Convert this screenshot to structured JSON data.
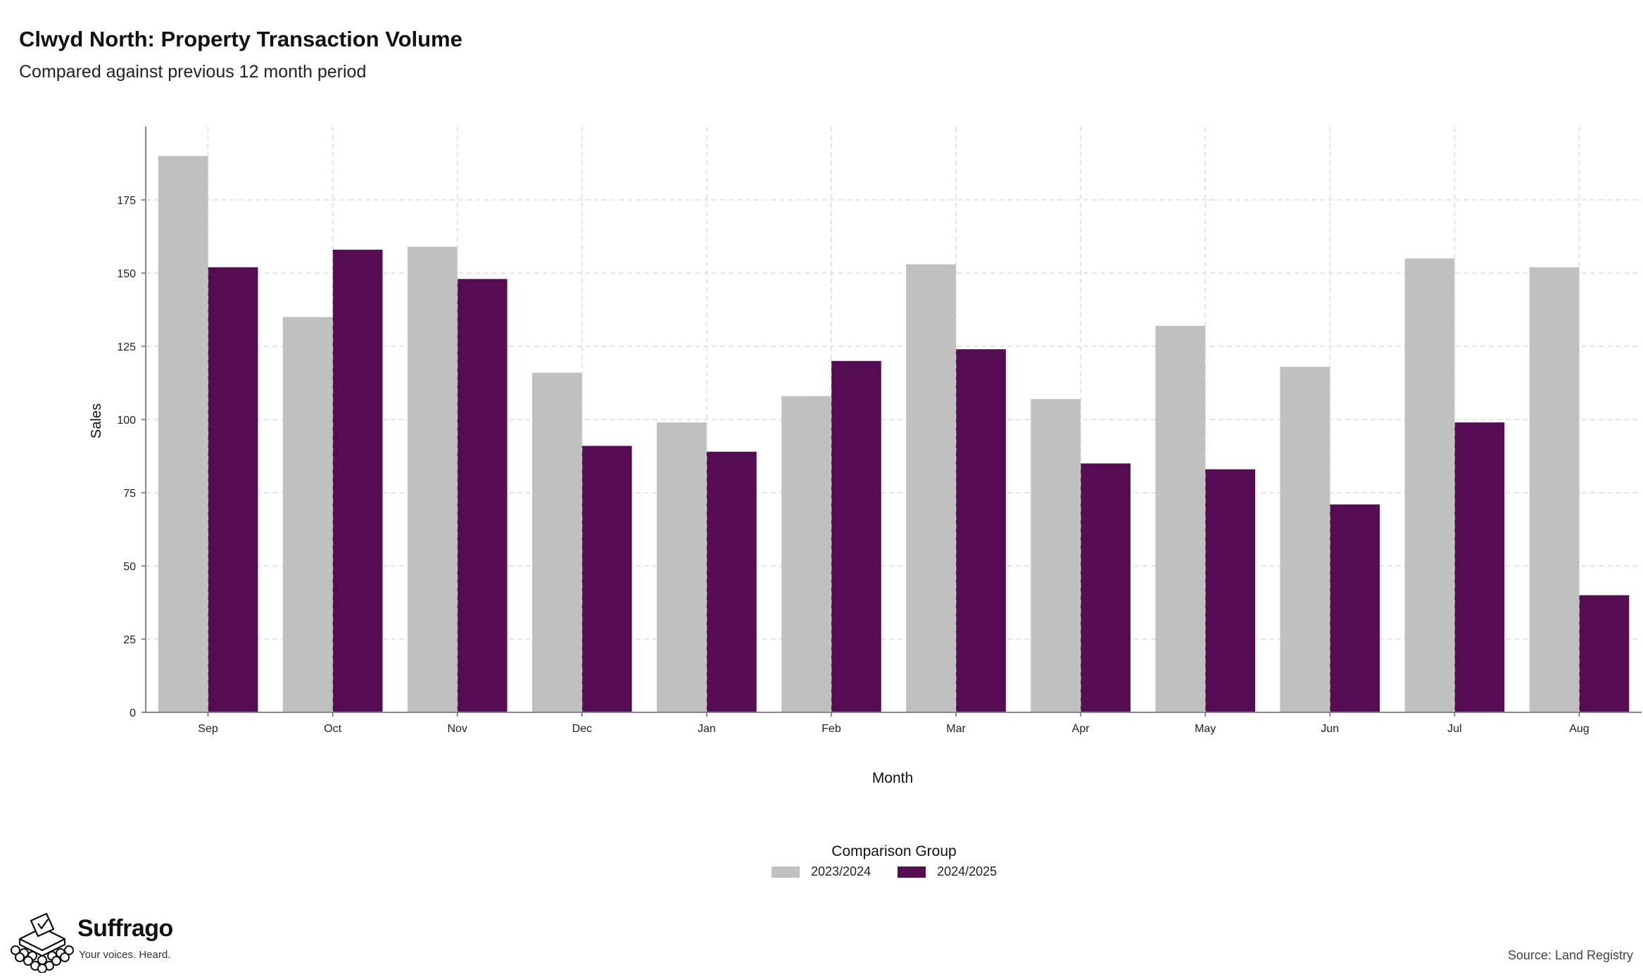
{
  "title": "Clwyd North: Property Transaction Volume",
  "subtitle": "Compared against previous 12 month period",
  "chart_data": {
    "type": "bar",
    "categories": [
      "Sep",
      "Oct",
      "Nov",
      "Dec",
      "Jan",
      "Feb",
      "Mar",
      "Apr",
      "May",
      "Jun",
      "Jul",
      "Aug"
    ],
    "series": [
      {
        "name": "2023/2024",
        "color": "#c0c0c0",
        "values": [
          190,
          135,
          159,
          116,
          99,
          108,
          153,
          107,
          132,
          118,
          155,
          152
        ]
      },
      {
        "name": "2024/2025",
        "color": "#560c52",
        "values": [
          152,
          158,
          148,
          91,
          89,
          120,
          124,
          85,
          83,
          71,
          99,
          40
        ]
      }
    ],
    "xlabel": "Month",
    "ylabel": "Sales",
    "ylim": [
      0,
      200
    ],
    "yticks": [
      0,
      25,
      50,
      75,
      100,
      125,
      150,
      175
    ],
    "grid": true,
    "legend_title": "Comparison Group",
    "legend_position": "bottom"
  },
  "brand": {
    "name": "Suffrago",
    "tagline": "Your voices. Heard.",
    "logo_icon": "ballot-box-icon"
  },
  "source": "Source: Land Registry"
}
